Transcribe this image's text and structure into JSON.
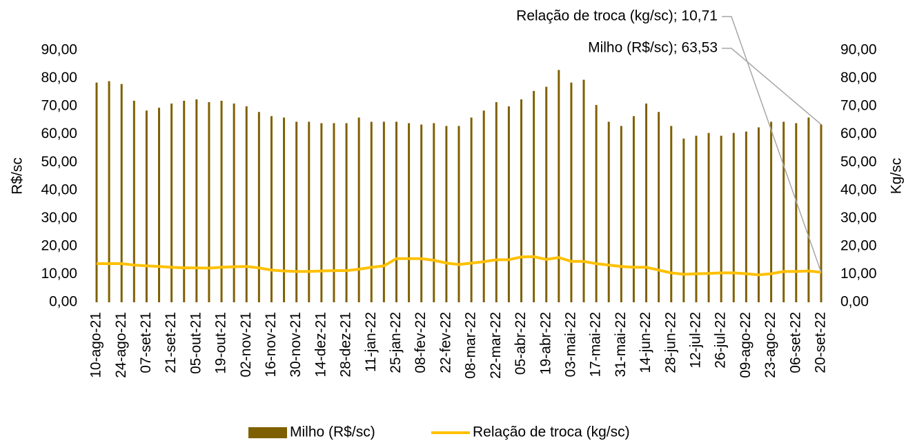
{
  "chart_data": {
    "type": "bar-line",
    "categories": [
      "10-ago-21",
      null,
      "24-ago-21",
      null,
      "07-set-21",
      null,
      "21-set-21",
      null,
      "05-out-21",
      null,
      "19-out-21",
      null,
      "02-nov-21",
      null,
      "16-nov-21",
      null,
      "30-nov-21",
      null,
      "14-dez-21",
      null,
      "28-dez-21",
      null,
      "11-jan-22",
      null,
      "25-jan-22",
      null,
      "08-fev-22",
      null,
      "22-fev-22",
      null,
      "08-mar-22",
      null,
      "22-mar-22",
      null,
      "05-abr-22",
      null,
      "19-abr-22",
      null,
      "03-mai-22",
      null,
      "17-mai-22",
      null,
      "31-mai-22",
      null,
      "14-jun-22",
      null,
      "28-jun-22",
      null,
      "12-jul-22",
      null,
      "26-jul-22",
      null,
      "09-ago-22",
      null,
      "23-ago-22",
      null,
      "06-set-22",
      null,
      "20-set-22"
    ],
    "series": [
      {
        "name": "Milho (R$/sc)",
        "color": "#7f6000",
        "kind": "bar",
        "values": [
          78.5,
          79,
          78,
          72,
          68.5,
          69.5,
          71,
          72,
          72.5,
          71.5,
          72,
          71,
          70,
          68,
          66.5,
          66,
          64.5,
          64.5,
          64,
          64,
          64,
          66,
          64.5,
          64.5,
          64.5,
          64,
          63.5,
          64,
          63,
          63,
          66,
          68.5,
          71.5,
          70,
          72.5,
          75.5,
          77,
          83,
          78.5,
          79.5,
          70.5,
          64.5,
          63,
          66.5,
          71,
          68,
          63,
          58.5,
          59.5,
          60.5,
          59.5,
          60.5,
          61,
          62.5,
          64.5,
          64.5,
          64,
          66,
          63.53
        ]
      },
      {
        "name": "Relação de troca (kg/sc)",
        "color": "#ffc000",
        "kind": "line",
        "axis": "y2",
        "values": [
          13.8,
          13.8,
          13.8,
          13.3,
          13,
          12.8,
          12.5,
          12.3,
          12.3,
          12.2,
          12.5,
          12.7,
          12.8,
          12.3,
          11.5,
          11.2,
          11,
          11,
          11.2,
          11.3,
          11.3,
          11.8,
          12.5,
          13,
          15.6,
          15.6,
          15.6,
          15,
          14,
          13.5,
          14,
          14.5,
          15.2,
          15.2,
          16.2,
          16.3,
          15.3,
          16,
          14.6,
          14.6,
          13.8,
          13.3,
          12.8,
          12.5,
          12.5,
          11.5,
          10.5,
          10,
          10.2,
          10.3,
          10.5,
          10.5,
          10.2,
          9.8,
          10.2,
          11,
          11,
          11.2,
          10.71
        ]
      }
    ],
    "annotations": [
      "Relação de troca (kg/sc); 10,71",
      "Milho (R$/sc); 63,53"
    ],
    "ylabel": "R$/sc",
    "y2label": "Kg/sc",
    "ylim": [
      0,
      90
    ],
    "yticks": [
      {
        "value": 0,
        "label": "0,00"
      },
      {
        "value": 10,
        "label": "10,00"
      },
      {
        "value": 20,
        "label": "20,00"
      },
      {
        "value": 30,
        "label": "30,00"
      },
      {
        "value": 40,
        "label": "40,00"
      },
      {
        "value": 50,
        "label": "50,00"
      },
      {
        "value": 60,
        "label": "60,00"
      },
      {
        "value": 70,
        "label": "70,00"
      },
      {
        "value": 80,
        "label": "80,00"
      },
      {
        "value": 90,
        "label": "90,00"
      }
    ],
    "y2lim": [
      0,
      90
    ],
    "y2ticks": [
      {
        "value": 0,
        "label": "0,00"
      },
      {
        "value": 10,
        "label": "10,00"
      },
      {
        "value": 20,
        "label": "20,00"
      },
      {
        "value": 30,
        "label": "30,00"
      },
      {
        "value": 40,
        "label": "40,00"
      },
      {
        "value": 50,
        "label": "50,00"
      },
      {
        "value": 60,
        "label": "60,00"
      },
      {
        "value": 70,
        "label": "70,00"
      },
      {
        "value": 80,
        "label": "80,00"
      },
      {
        "value": 90,
        "label": "90,00"
      }
    ],
    "grid": false
  }
}
